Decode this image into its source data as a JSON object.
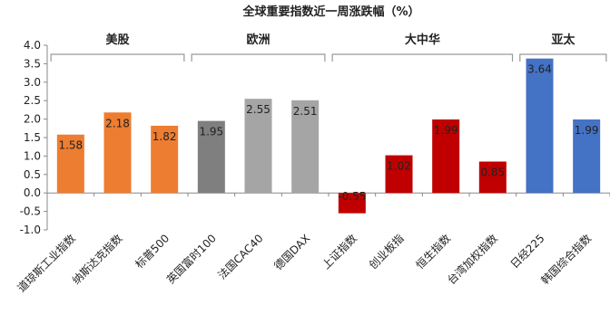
{
  "chart_data": {
    "type": "bar",
    "title": "全球重要指数近一周涨跌幅（%）",
    "xlabel": "",
    "ylabel": "",
    "ylim": [
      -1.0,
      4.0
    ],
    "yticks": [
      "4.0",
      "3.5",
      "3.0",
      "2.5",
      "2.0",
      "1.5",
      "1.0",
      "0.5",
      "0.0",
      "-0.5",
      "-1.0"
    ],
    "gridlines": false,
    "categories": [
      "道琼斯工业指数",
      "纳斯达克指数",
      "标普500",
      "英国富时100",
      "法国CAC40",
      "德国DAX",
      "上证指数",
      "创业板指",
      "恒生指数",
      "台湾加权指数",
      "日经225",
      "韩国综合指数"
    ],
    "values": [
      1.58,
      2.18,
      1.82,
      1.95,
      2.55,
      2.51,
      -0.55,
      1.02,
      1.99,
      0.85,
      3.64,
      1.99
    ],
    "data_labels": [
      "1.58",
      "2.18",
      "1.82",
      "1.95",
      "2.55",
      "2.51",
      "-0.55",
      "1.02",
      "1.99",
      "0.85",
      "3.64",
      "1.99"
    ],
    "colors": [
      "#ED7D31",
      "#ED7D31",
      "#ED7D31",
      "#7F7F7F",
      "#A5A5A5",
      "#A5A5A5",
      "#C00000",
      "#C00000",
      "#C00000",
      "#C00000",
      "#4472C4",
      "#4472C4"
    ],
    "groups": [
      {
        "label": "美股",
        "start": 0,
        "end": 2
      },
      {
        "label": "欧洲",
        "start": 3,
        "end": 5
      },
      {
        "label": "大中华",
        "start": 6,
        "end": 9
      },
      {
        "label": "亚太",
        "start": 10,
        "end": 11
      }
    ]
  }
}
